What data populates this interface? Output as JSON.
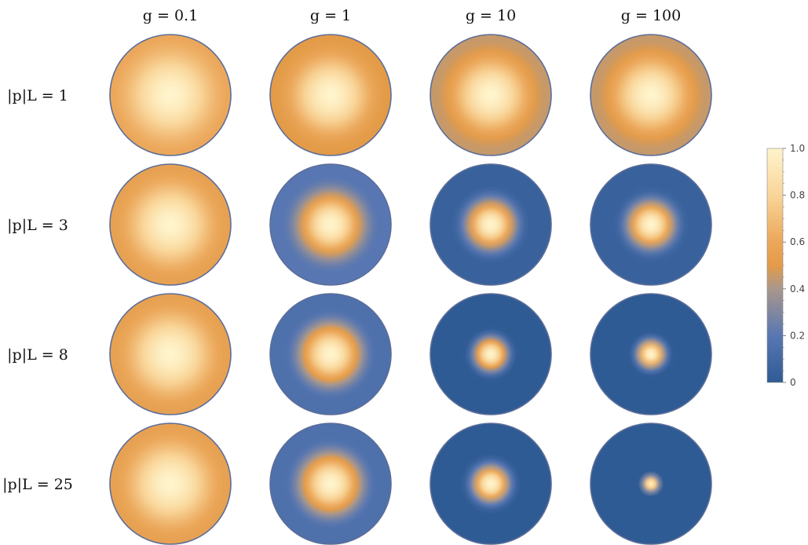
{
  "chart_data": {
    "type": "heatmap",
    "title": "",
    "column_labels": [
      "g = 0.1",
      "g = 1",
      "g = 10",
      "g = 100"
    ],
    "row_labels": [
      "|p|L = 1",
      "|p|L = 3",
      "|p|L = 8",
      "|p|L = 25"
    ],
    "column_g_values": [
      0.1,
      1,
      10,
      100
    ],
    "row_pL_values": [
      1,
      3,
      8,
      25
    ],
    "cells": [
      {
        "row": 0,
        "col": 0,
        "center_value": 1.0,
        "edge_value": 0.6,
        "core_radius_fraction": 1.0
      },
      {
        "row": 0,
        "col": 1,
        "center_value": 1.0,
        "edge_value": 0.5,
        "core_radius_fraction": 0.95
      },
      {
        "row": 0,
        "col": 2,
        "center_value": 1.0,
        "edge_value": 0.45,
        "core_radius_fraction": 0.92
      },
      {
        "row": 0,
        "col": 3,
        "center_value": 1.0,
        "edge_value": 0.45,
        "core_radius_fraction": 0.92
      },
      {
        "row": 1,
        "col": 0,
        "center_value": 1.0,
        "edge_value": 0.55,
        "core_radius_fraction": 0.98
      },
      {
        "row": 1,
        "col": 1,
        "center_value": 1.0,
        "edge_value": 0.2,
        "core_radius_fraction": 0.8
      },
      {
        "row": 1,
        "col": 2,
        "center_value": 1.0,
        "edge_value": 0.05,
        "core_radius_fraction": 0.65
      },
      {
        "row": 1,
        "col": 3,
        "center_value": 1.0,
        "edge_value": 0.05,
        "core_radius_fraction": 0.62
      },
      {
        "row": 2,
        "col": 0,
        "center_value": 1.0,
        "edge_value": 0.55,
        "core_radius_fraction": 0.98
      },
      {
        "row": 2,
        "col": 1,
        "center_value": 1.0,
        "edge_value": 0.15,
        "core_radius_fraction": 0.78
      },
      {
        "row": 2,
        "col": 2,
        "center_value": 1.0,
        "edge_value": 0.0,
        "core_radius_fraction": 0.45
      },
      {
        "row": 2,
        "col": 3,
        "center_value": 1.0,
        "edge_value": 0.0,
        "core_radius_fraction": 0.38
      },
      {
        "row": 3,
        "col": 0,
        "center_value": 1.0,
        "edge_value": 0.55,
        "core_radius_fraction": 0.98
      },
      {
        "row": 3,
        "col": 1,
        "center_value": 1.0,
        "edge_value": 0.15,
        "core_radius_fraction": 0.78
      },
      {
        "row": 3,
        "col": 2,
        "center_value": 1.0,
        "edge_value": 0.0,
        "core_radius_fraction": 0.5
      },
      {
        "row": 3,
        "col": 3,
        "center_value": 1.0,
        "edge_value": 0.0,
        "core_radius_fraction": 0.22
      }
    ],
    "colorbar": {
      "ticks": [
        0,
        0.2,
        0.4,
        0.6,
        0.8,
        1.0
      ],
      "tick_labels": [
        "0",
        "0.2",
        "0.4",
        "0.6",
        "0.8",
        "1.0"
      ],
      "range": [
        0,
        1
      ],
      "colormap": [
        {
          "value": 0.0,
          "color": "#2f5b94"
        },
        {
          "value": 0.2,
          "color": "#5877b2"
        },
        {
          "value": 0.4,
          "color": "#a9978c"
        },
        {
          "value": 0.5,
          "color": "#e39b48"
        },
        {
          "value": 0.6,
          "color": "#eba75a"
        },
        {
          "value": 0.8,
          "color": "#f9d599"
        },
        {
          "value": 1.0,
          "color": "#fff4cc"
        }
      ]
    },
    "disc_outline_color": "#5c6e99"
  }
}
